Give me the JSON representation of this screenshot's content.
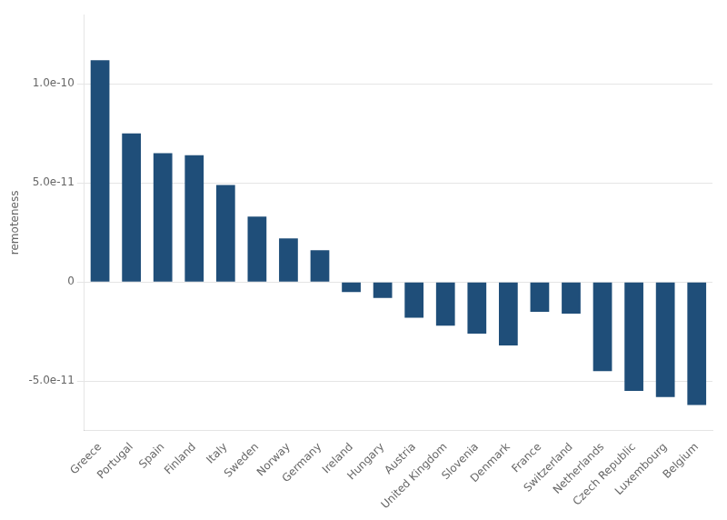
{
  "chart_data": {
    "type": "bar",
    "categories": [
      "Greece",
      "Portugal",
      "Spain",
      "Finland",
      "Italy",
      "Sweden",
      "Norway",
      "Germany",
      "Ireland",
      "Hungary",
      "Austria",
      "United Kingdom",
      "Slovenia",
      "Denmark",
      "France",
      "Switzerland",
      "Netherlands",
      "Czech Republic",
      "Luxembourg",
      "Belgium"
    ],
    "values": [
      1.12e-10,
      7.5e-11,
      6.5e-11,
      6.4e-11,
      4.9e-11,
      3.3e-11,
      2.2e-11,
      1.6e-11,
      -5e-12,
      -8e-12,
      -1.8e-11,
      -2.2e-11,
      -2.6e-11,
      -3.2e-11,
      -1.5e-11,
      -1.6e-11,
      -4.5e-11,
      -5.5e-11,
      -5.8e-11,
      -6.2e-11
    ],
    "color": "#1f4e79",
    "ylabel": "remoteness",
    "ylim": [
      -7.5e-11,
      1.35e-10
    ],
    "yticks": [
      {
        "value": -5e-11,
        "label": "-5.0e-11"
      },
      {
        "value": 0,
        "label": "0"
      },
      {
        "value": 5e-11,
        "label": "5.0e-11"
      },
      {
        "value": 1e-10,
        "label": "1.0e-10"
      }
    ],
    "grid": true
  }
}
